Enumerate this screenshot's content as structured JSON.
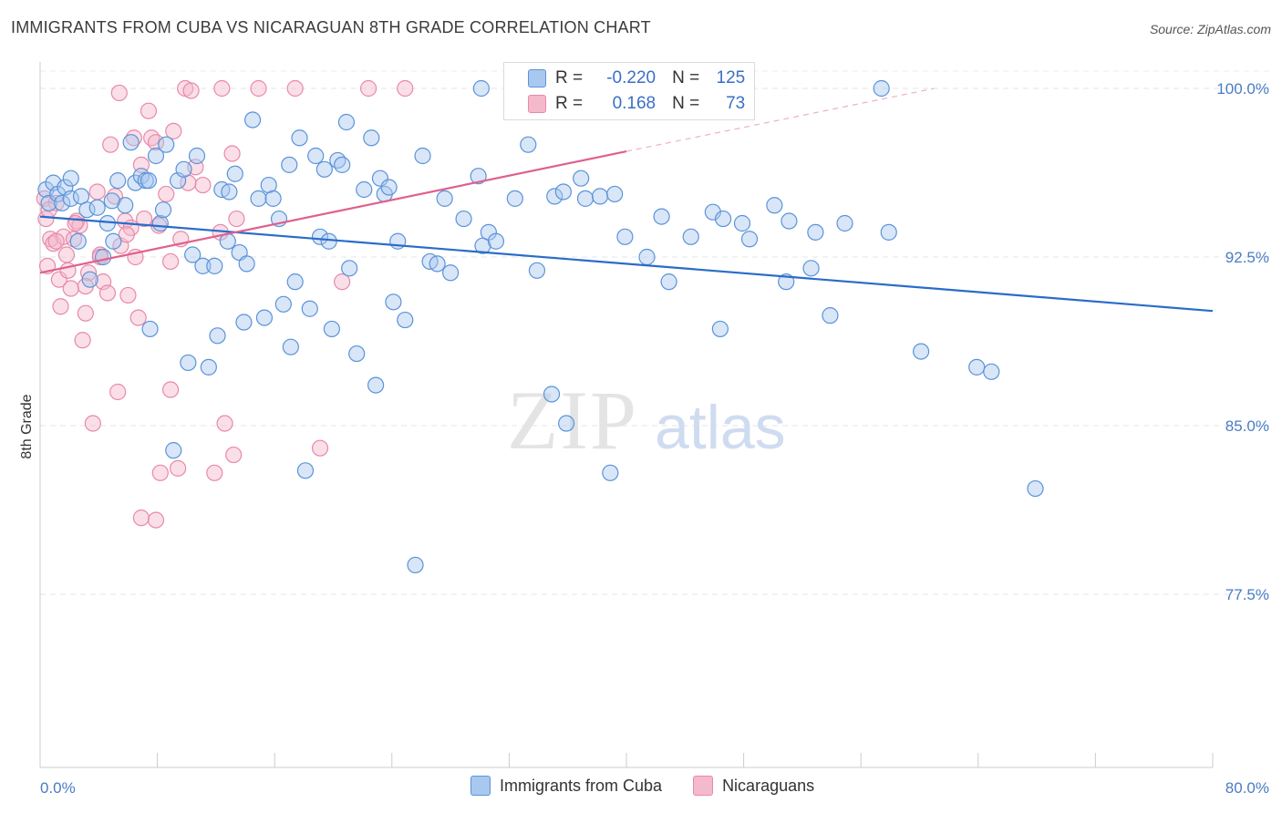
{
  "header": {
    "title": "IMMIGRANTS FROM CUBA VS NICARAGUAN 8TH GRADE CORRELATION CHART",
    "source": "Source: ZipAtlas.com"
  },
  "watermark": {
    "zip": "ZIP",
    "atlas": "atlas"
  },
  "legend_box": {
    "rows": [
      {
        "r_label": "R =",
        "r_value": "-0.220",
        "n_label": "N =",
        "n_value": "125"
      },
      {
        "r_label": "R =",
        "r_value": "0.168",
        "n_label": "N =",
        "n_value": "73"
      }
    ]
  },
  "bottom_legend": [
    {
      "label": "Immigrants from Cuba"
    },
    {
      "label": "Nicaraguans"
    }
  ],
  "colors": {
    "blue_fill": "#a9c8ef",
    "blue_stroke": "#5b93d8",
    "blue_line": "#2a6cc9",
    "pink_fill": "#f5b9cc",
    "pink_stroke": "#e889a8",
    "pink_line": "#e0608d",
    "tick_color": "#4a7cc4"
  },
  "chart_data": {
    "type": "scatter",
    "title": "IMMIGRANTS FROM CUBA VS NICARAGUAN 8TH GRADE CORRELATION CHART",
    "xlabel": "",
    "ylabel": "8th Grade",
    "xlim": [
      0,
      80
    ],
    "ylim": [
      71,
      101
    ],
    "x_tick_labels": [
      {
        "v": 0,
        "label": "0.0%"
      },
      {
        "v": 80,
        "label": "80.0%"
      }
    ],
    "y_tick_labels": [
      {
        "v": 100,
        "label": "100.0%"
      },
      {
        "v": 92.5,
        "label": "92.5%"
      },
      {
        "v": 85,
        "label": "85.0%"
      },
      {
        "v": 77.5,
        "label": "77.5%"
      }
    ],
    "grid": true,
    "series": [
      {
        "name": "Immigrants from Cuba",
        "r": -0.22,
        "n": 125,
        "trend": {
          "x": [
            0,
            80
          ],
          "y": [
            94.3,
            90.1
          ]
        },
        "points": [
          [
            0.4,
            95.5
          ],
          [
            0.6,
            94.9
          ],
          [
            0.9,
            95.8
          ],
          [
            1.2,
            95.3
          ],
          [
            1.5,
            94.9
          ],
          [
            1.7,
            95.6
          ],
          [
            2.1,
            95.1
          ],
          [
            2.6,
            93.2
          ],
          [
            2.8,
            95.2
          ],
          [
            3.2,
            94.6
          ],
          [
            3.4,
            91.5
          ],
          [
            3.9,
            94.7
          ],
          [
            4.3,
            92.5
          ],
          [
            4.6,
            94.0
          ],
          [
            5.0,
            93.2
          ],
          [
            5.3,
            95.9
          ],
          [
            5.8,
            94.8
          ],
          [
            6.2,
            97.6
          ],
          [
            6.5,
            95.8
          ],
          [
            6.9,
            96.1
          ],
          [
            7.2,
            95.9
          ],
          [
            7.5,
            89.3
          ],
          [
            7.9,
            97.0
          ],
          [
            8.2,
            94.0
          ],
          [
            8.6,
            97.5
          ],
          [
            9.1,
            83.9
          ],
          [
            9.4,
            95.9
          ],
          [
            9.8,
            96.4
          ],
          [
            10.1,
            87.8
          ],
          [
            10.4,
            92.6
          ],
          [
            10.7,
            97.0
          ],
          [
            11.1,
            92.1
          ],
          [
            11.5,
            87.6
          ],
          [
            11.9,
            92.1
          ],
          [
            12.1,
            89.0
          ],
          [
            12.4,
            95.5
          ],
          [
            12.8,
            93.2
          ],
          [
            13.3,
            96.2
          ],
          [
            13.6,
            92.7
          ],
          [
            13.9,
            89.6
          ],
          [
            14.1,
            92.2
          ],
          [
            14.5,
            98.6
          ],
          [
            14.9,
            95.1
          ],
          [
            15.3,
            89.8
          ],
          [
            15.6,
            95.7
          ],
          [
            15.9,
            95.1
          ],
          [
            16.3,
            94.2
          ],
          [
            16.6,
            90.4
          ],
          [
            17.0,
            96.6
          ],
          [
            17.1,
            88.5
          ],
          [
            17.4,
            91.4
          ],
          [
            17.7,
            97.8
          ],
          [
            18.1,
            83.0
          ],
          [
            18.4,
            90.2
          ],
          [
            18.8,
            97.0
          ],
          [
            19.1,
            93.4
          ],
          [
            19.4,
            96.4
          ],
          [
            19.7,
            93.2
          ],
          [
            19.9,
            89.3
          ],
          [
            20.3,
            96.8
          ],
          [
            20.6,
            96.6
          ],
          [
            20.9,
            98.5
          ],
          [
            21.1,
            92.0
          ],
          [
            21.6,
            88.2
          ],
          [
            22.1,
            95.5
          ],
          [
            22.6,
            97.8
          ],
          [
            22.9,
            86.8
          ],
          [
            23.2,
            96.0
          ],
          [
            23.5,
            95.3
          ],
          [
            23.8,
            95.6
          ],
          [
            24.1,
            90.5
          ],
          [
            24.4,
            93.2
          ],
          [
            24.9,
            89.7
          ],
          [
            25.6,
            78.8
          ],
          [
            26.1,
            97.0
          ],
          [
            26.6,
            92.3
          ],
          [
            27.1,
            92.2
          ],
          [
            27.6,
            95.1
          ],
          [
            28.0,
            91.8
          ],
          [
            28.9,
            94.2
          ],
          [
            29.9,
            96.1
          ],
          [
            30.2,
            93.0
          ],
          [
            30.6,
            93.6
          ],
          [
            31.1,
            93.2
          ],
          [
            32.4,
            95.1
          ],
          [
            33.3,
            97.5
          ],
          [
            33.9,
            91.9
          ],
          [
            34.9,
            86.4
          ],
          [
            35.1,
            95.2
          ],
          [
            35.7,
            95.4
          ],
          [
            35.9,
            85.1
          ],
          [
            36.9,
            96.0
          ],
          [
            37.2,
            95.1
          ],
          [
            38.2,
            95.2
          ],
          [
            38.9,
            82.9
          ],
          [
            39.2,
            95.3
          ],
          [
            39.9,
            93.4
          ],
          [
            41.4,
            92.5
          ],
          [
            42.4,
            94.3
          ],
          [
            42.9,
            91.4
          ],
          [
            44.4,
            93.4
          ],
          [
            45.9,
            94.5
          ],
          [
            46.4,
            89.3
          ],
          [
            46.6,
            94.2
          ],
          [
            47.9,
            94.0
          ],
          [
            48.4,
            93.3
          ],
          [
            50.1,
            94.8
          ],
          [
            50.9,
            91.4
          ],
          [
            51.1,
            94.1
          ],
          [
            52.9,
            93.6
          ],
          [
            52.6,
            92.0
          ],
          [
            53.9,
            89.9
          ],
          [
            54.9,
            94.0
          ],
          [
            57.4,
            100.0
          ],
          [
            57.9,
            93.6
          ],
          [
            60.1,
            88.3
          ],
          [
            63.9,
            87.6
          ],
          [
            64.9,
            87.4
          ],
          [
            67.9,
            82.2
          ],
          [
            30.1,
            100.0
          ],
          [
            7.4,
            95.9
          ],
          [
            12.9,
            95.4
          ],
          [
            2.1,
            96.0
          ],
          [
            8.4,
            94.6
          ],
          [
            4.9,
            95.0
          ]
        ]
      },
      {
        "name": "Nicaraguans",
        "r": 0.168,
        "n": 73,
        "trend": {
          "x": [
            0,
            40
          ],
          "y": [
            91.8,
            97.2
          ]
        },
        "points": [
          [
            0.3,
            95.1
          ],
          [
            0.4,
            94.2
          ],
          [
            0.5,
            92.1
          ],
          [
            0.7,
            93.3
          ],
          [
            0.9,
            93.1
          ],
          [
            1.1,
            94.9
          ],
          [
            1.3,
            91.5
          ],
          [
            1.4,
            90.3
          ],
          [
            1.6,
            93.4
          ],
          [
            1.8,
            92.6
          ],
          [
            1.9,
            91.9
          ],
          [
            2.1,
            91.1
          ],
          [
            2.3,
            93.3
          ],
          [
            2.5,
            94.1
          ],
          [
            2.7,
            93.9
          ],
          [
            2.9,
            88.8
          ],
          [
            3.1,
            90.0
          ],
          [
            3.3,
            91.8
          ],
          [
            3.6,
            85.1
          ],
          [
            3.9,
            95.4
          ],
          [
            4.1,
            92.6
          ],
          [
            4.3,
            91.4
          ],
          [
            4.6,
            90.9
          ],
          [
            4.8,
            97.5
          ],
          [
            5.1,
            95.2
          ],
          [
            5.3,
            86.5
          ],
          [
            5.5,
            93.0
          ],
          [
            5.8,
            94.1
          ],
          [
            6.0,
            90.8
          ],
          [
            6.2,
            93.8
          ],
          [
            6.5,
            92.5
          ],
          [
            6.7,
            89.8
          ],
          [
            6.9,
            80.9
          ],
          [
            7.1,
            94.2
          ],
          [
            7.4,
            99.0
          ],
          [
            7.6,
            97.8
          ],
          [
            7.9,
            80.8
          ],
          [
            8.2,
            82.9
          ],
          [
            8.6,
            95.3
          ],
          [
            8.9,
            92.3
          ],
          [
            9.1,
            98.1
          ],
          [
            9.4,
            83.1
          ],
          [
            9.6,
            93.3
          ],
          [
            9.9,
            100.0
          ],
          [
            10.3,
            99.9
          ],
          [
            10.6,
            96.5
          ],
          [
            11.1,
            95.7
          ],
          [
            11.9,
            82.9
          ],
          [
            12.3,
            93.6
          ],
          [
            12.6,
            85.1
          ],
          [
            13.1,
            97.1
          ],
          [
            13.4,
            94.2
          ],
          [
            14.9,
            100.0
          ],
          [
            17.4,
            100.0
          ],
          [
            19.1,
            84.0
          ],
          [
            20.6,
            91.4
          ],
          [
            22.4,
            100.0
          ],
          [
            24.9,
            100.0
          ],
          [
            6.4,
            97.8
          ],
          [
            8.1,
            93.9
          ],
          [
            12.4,
            100.0
          ],
          [
            5.4,
            99.8
          ],
          [
            4.1,
            92.5
          ],
          [
            3.1,
            91.2
          ],
          [
            8.9,
            86.6
          ],
          [
            13.2,
            83.7
          ],
          [
            6.9,
            96.6
          ],
          [
            7.9,
            97.6
          ],
          [
            1.1,
            93.2
          ],
          [
            2.4,
            94.0
          ],
          [
            10.1,
            95.8
          ],
          [
            0.6,
            94.6
          ],
          [
            5.9,
            93.5
          ]
        ]
      }
    ]
  },
  "dim_dashed_extension": {
    "x": [
      40,
      61
    ],
    "y": [
      97.2,
      100.0
    ]
  }
}
